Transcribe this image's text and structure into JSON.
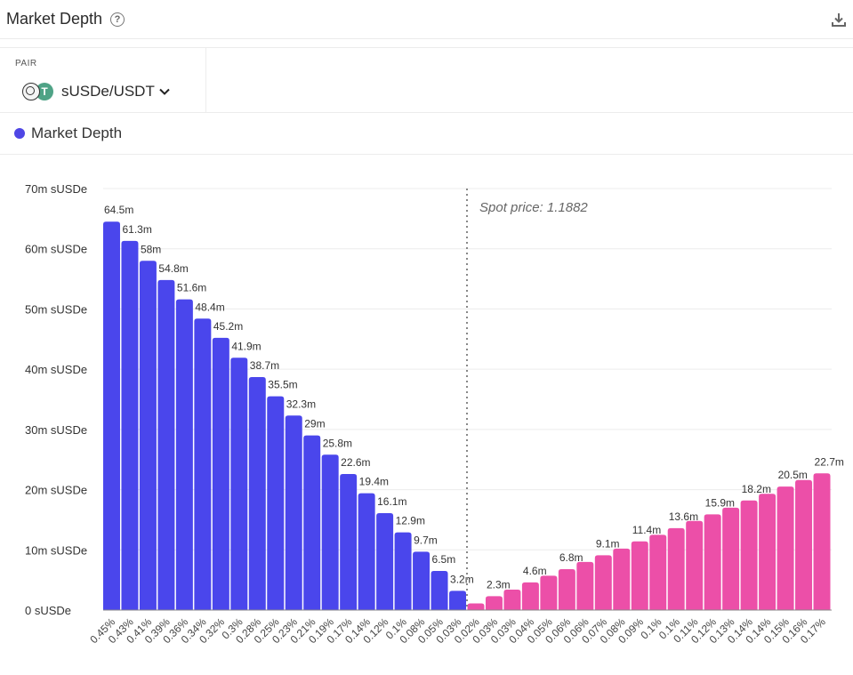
{
  "header": {
    "title": "Market Depth",
    "help_icon": "question-circle-icon",
    "download_icon": "download-icon"
  },
  "pair": {
    "label": "PAIR",
    "value": "sUSDe/USDT",
    "token_b_glyph": "T"
  },
  "legend": {
    "label": "Market Depth",
    "color": "#4f46e5"
  },
  "chart_data": {
    "type": "bar",
    "ylim": [
      0,
      70
    ],
    "yunit": "m sUSDe",
    "yticks": [
      "0 sUSDe",
      "10m sUSDe",
      "20m sUSDe",
      "30m sUSDe",
      "40m sUSDe",
      "50m sUSDe",
      "60m sUSDe",
      "70m sUSDe"
    ],
    "spot_label": "Spot price: 1.1882",
    "colors": {
      "bid": "#4a46ec",
      "ask": "#ec4fa8"
    },
    "bid": {
      "x": [
        "0.45%",
        "0.43%",
        "0.41%",
        "0.39%",
        "0.36%",
        "0.34%",
        "0.32%",
        "0.3%",
        "0.28%",
        "0.25%",
        "0.23%",
        "0.21%",
        "0.19%",
        "0.17%",
        "0.14%",
        "0.12%",
        "0.1%",
        "0.08%",
        "0.05%",
        "0.03%"
      ],
      "values": [
        64.5,
        61.3,
        58,
        54.8,
        51.6,
        48.4,
        45.2,
        41.9,
        38.7,
        35.5,
        32.3,
        29,
        25.8,
        22.6,
        19.4,
        16.1,
        12.9,
        9.7,
        6.5,
        3.2
      ],
      "labels": [
        "64.5m",
        "61.3m",
        "58m",
        "54.8m",
        "51.6m",
        "48.4m",
        "45.2m",
        "41.9m",
        "38.7m",
        "35.5m",
        "32.3m",
        "29m",
        "25.8m",
        "22.6m",
        "19.4m",
        "16.1m",
        "12.9m",
        "9.7m",
        "6.5m",
        "3.2m"
      ]
    },
    "ask": {
      "x": [
        "0.02%",
        "0.03%",
        "0.03%",
        "0.04%",
        "0.05%",
        "0.06%",
        "0.06%",
        "0.07%",
        "0.08%",
        "0.09%",
        "0.1%",
        "0.1%",
        "0.11%",
        "0.12%",
        "0.13%",
        "0.14%",
        "0.14%",
        "0.15%",
        "0.16%",
        "0.17%"
      ],
      "values": [
        1.1,
        2.3,
        3.4,
        4.6,
        5.7,
        6.8,
        8,
        9.1,
        10.2,
        11.4,
        12.5,
        13.6,
        14.8,
        15.9,
        17,
        18.2,
        19.3,
        20.5,
        21.6,
        22.7
      ],
      "labels": [
        "",
        "2.3m",
        "",
        "4.6m",
        "",
        "6.8m",
        "",
        "9.1m",
        "",
        "11.4m",
        "",
        "13.6m",
        "",
        "15.9m",
        "",
        "18.2m",
        "",
        "20.5m",
        "",
        "22.7m"
      ]
    }
  }
}
